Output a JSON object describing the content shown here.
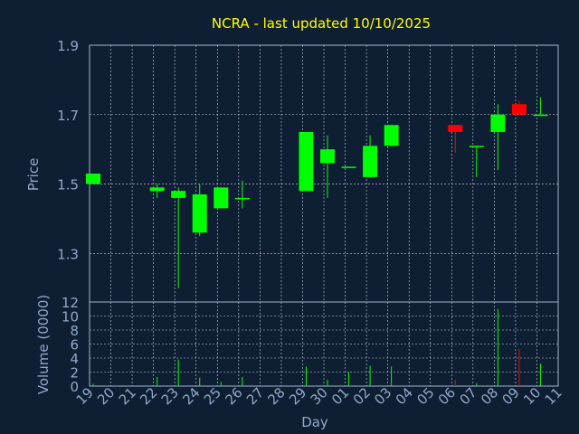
{
  "colors": {
    "background": "#0f1f33",
    "title": "#ffff00",
    "axis_text": "#8fa8c8",
    "axis_line": "#a0b4cc",
    "grid": "#c8d2dc",
    "up": "#00ff00",
    "down": "#ff0000"
  },
  "chart_data": [
    {
      "type": "candlestick",
      "title": "NCRA - last updated 10/10/2025",
      "xlabel": "",
      "ylabel": "Price",
      "ylim": [
        1.16,
        1.9
      ],
      "yticks": [
        "1.9",
        "1.7",
        "1.5",
        "1.3"
      ],
      "ytick_values": [
        1.9,
        1.7,
        1.5,
        1.3
      ],
      "grid": true,
      "categories": [
        "19",
        "20",
        "21",
        "22",
        "23",
        "24",
        "25",
        "26",
        "27",
        "28",
        "29",
        "30",
        "01",
        "02",
        "03",
        "04",
        "05",
        "06",
        "07",
        "08",
        "09",
        "10",
        "11"
      ],
      "candles": [
        {
          "day": "19",
          "open": 1.5,
          "high": 1.53,
          "low": 1.5,
          "close": 1.53
        },
        {
          "day": "22",
          "open": 1.48,
          "high": 1.5,
          "low": 1.46,
          "close": 1.49
        },
        {
          "day": "23",
          "open": 1.46,
          "high": 1.49,
          "low": 1.2,
          "close": 1.48
        },
        {
          "day": "24",
          "open": 1.36,
          "high": 1.5,
          "low": 1.35,
          "close": 1.47
        },
        {
          "day": "25",
          "open": 1.43,
          "high": 1.49,
          "low": 1.43,
          "close": 1.49
        },
        {
          "day": "26",
          "open": 1.46,
          "high": 1.51,
          "low": 1.43,
          "close": 1.46
        },
        {
          "day": "29",
          "open": 1.48,
          "high": 1.65,
          "low": 1.48,
          "close": 1.65
        },
        {
          "day": "30",
          "open": 1.56,
          "high": 1.64,
          "low": 1.46,
          "close": 1.6
        },
        {
          "day": "01",
          "open": 1.55,
          "high": 1.55,
          "low": 1.55,
          "close": 1.55
        },
        {
          "day": "02",
          "open": 1.52,
          "high": 1.64,
          "low": 1.52,
          "close": 1.61
        },
        {
          "day": "03",
          "open": 1.61,
          "high": 1.67,
          "low": 1.61,
          "close": 1.67
        },
        {
          "day": "06",
          "open": 1.67,
          "high": 1.67,
          "low": 1.59,
          "close": 1.65
        },
        {
          "day": "07",
          "open": 1.61,
          "high": 1.61,
          "low": 1.52,
          "close": 1.61
        },
        {
          "day": "08",
          "open": 1.65,
          "high": 1.73,
          "low": 1.54,
          "close": 1.7
        },
        {
          "day": "09",
          "open": 1.73,
          "high": 1.74,
          "low": 1.7,
          "close": 1.7
        },
        {
          "day": "10",
          "open": 1.7,
          "high": 1.75,
          "low": 1.7,
          "close": 1.7
        }
      ]
    },
    {
      "type": "bar",
      "title": "",
      "xlabel": "Day",
      "ylabel": "Volume (0000)",
      "ylim": [
        0,
        12
      ],
      "yticks": [
        "12",
        "10",
        "8",
        "6",
        "4",
        "2",
        "0"
      ],
      "ytick_values": [
        12,
        10,
        8,
        6,
        4,
        2,
        0
      ],
      "grid": true,
      "categories": [
        "19",
        "20",
        "21",
        "22",
        "23",
        "24",
        "25",
        "26",
        "27",
        "28",
        "29",
        "30",
        "01",
        "02",
        "03",
        "04",
        "05",
        "06",
        "07",
        "08",
        "09",
        "10",
        "11"
      ],
      "volumes": [
        {
          "day": "19",
          "value": 0.3,
          "dir": "up"
        },
        {
          "day": "22",
          "value": 1.3,
          "dir": "up"
        },
        {
          "day": "23",
          "value": 3.8,
          "dir": "up"
        },
        {
          "day": "24",
          "value": 1.2,
          "dir": "up"
        },
        {
          "day": "25",
          "value": 0.6,
          "dir": "up"
        },
        {
          "day": "26",
          "value": 1.3,
          "dir": "up"
        },
        {
          "day": "29",
          "value": 2.8,
          "dir": "up"
        },
        {
          "day": "30",
          "value": 0.9,
          "dir": "up"
        },
        {
          "day": "01",
          "value": 2.0,
          "dir": "up"
        },
        {
          "day": "02",
          "value": 2.9,
          "dir": "up"
        },
        {
          "day": "03",
          "value": 2.8,
          "dir": "up"
        },
        {
          "day": "06",
          "value": 0.9,
          "dir": "down"
        },
        {
          "day": "07",
          "value": 0.4,
          "dir": "up"
        },
        {
          "day": "08",
          "value": 11.0,
          "dir": "up"
        },
        {
          "day": "09",
          "value": 5.3,
          "dir": "down"
        },
        {
          "day": "10",
          "value": 3.2,
          "dir": "up"
        }
      ]
    }
  ]
}
